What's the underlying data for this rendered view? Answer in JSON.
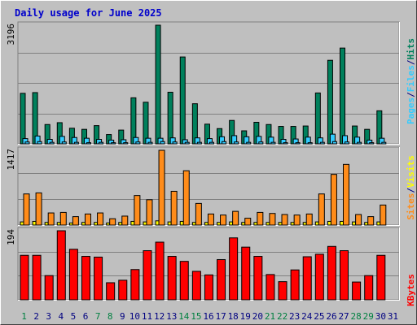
{
  "colors": {
    "background": "#c0c0c0",
    "plot_bg": "#bfbfbf",
    "grid": "#808080",
    "title_blue": "#0000cc",
    "hits": "#00805c",
    "files": "#33ccff",
    "pages": "#33ccff",
    "visits": "#ffff00",
    "sites": "#ff8c1a",
    "kbytes": "#ff0000",
    "day_black": "#000080",
    "day_green": "#008040"
  },
  "chart_data": [
    {
      "type": "bar",
      "title": "Daily usage for June 2025",
      "ylabel_max": "3196",
      "legend": [
        "Pages",
        "/",
        "Files",
        "/",
        "Hits"
      ],
      "categories": [
        "1",
        "2",
        "3",
        "4",
        "5",
        "6",
        "7",
        "8",
        "9",
        "10",
        "11",
        "12",
        "13",
        "14",
        "15",
        "16",
        "17",
        "18",
        "19",
        "20",
        "21",
        "22",
        "23",
        "24",
        "25",
        "26",
        "27",
        "28",
        "29",
        "30",
        "31"
      ],
      "ylim": [
        0,
        3196
      ],
      "series": [
        {
          "name": "Hits",
          "values": [
            1360,
            1380,
            520,
            570,
            420,
            390,
            490,
            250,
            370,
            1240,
            1120,
            3196,
            1390,
            2340,
            1080,
            530,
            410,
            630,
            350,
            580,
            520,
            470,
            470,
            480,
            1370,
            2250,
            2580,
            480,
            390,
            890,
            0
          ]
        },
        {
          "name": "Files",
          "values": [
            140,
            210,
            120,
            200,
            170,
            150,
            120,
            100,
            110,
            170,
            150,
            150,
            160,
            110,
            160,
            140,
            190,
            220,
            190,
            200,
            180,
            120,
            130,
            180,
            160,
            260,
            220,
            180,
            100,
            150,
            0
          ]
        },
        {
          "name": "Pages",
          "values": [
            50,
            60,
            40,
            50,
            40,
            30,
            40,
            30,
            30,
            50,
            40,
            60,
            50,
            40,
            40,
            40,
            60,
            50,
            40,
            50,
            40,
            30,
            30,
            30,
            40,
            60,
            50,
            40,
            30,
            40,
            0
          ]
        }
      ]
    },
    {
      "type": "bar",
      "ylabel_max": "1417",
      "legend": [
        "Sites",
        "/",
        "Visits"
      ],
      "categories": [
        "1",
        "2",
        "3",
        "4",
        "5",
        "6",
        "7",
        "8",
        "9",
        "10",
        "11",
        "12",
        "13",
        "14",
        "15",
        "16",
        "17",
        "18",
        "19",
        "20",
        "21",
        "22",
        "23",
        "24",
        "25",
        "26",
        "27",
        "28",
        "29",
        "30",
        "31"
      ],
      "ylim": [
        0,
        1417
      ],
      "series": [
        {
          "name": "Visits",
          "values": [
            60,
            70,
            50,
            50,
            40,
            50,
            50,
            40,
            50,
            70,
            60,
            80,
            60,
            70,
            50,
            50,
            50,
            60,
            50,
            50,
            50,
            50,
            50,
            50,
            60,
            70,
            70,
            60,
            50,
            60,
            0
          ]
        },
        {
          "name": "Sites",
          "values": [
            590,
            610,
            230,
            240,
            160,
            210,
            230,
            120,
            170,
            560,
            480,
            1417,
            640,
            1030,
            410,
            210,
            190,
            260,
            130,
            240,
            220,
            200,
            190,
            210,
            590,
            960,
            1150,
            200,
            160,
            380,
            0
          ]
        }
      ]
    },
    {
      "type": "bar",
      "ylabel_max": "194",
      "legend": [
        "KBytes"
      ],
      "categories": [
        "1",
        "2",
        "3",
        "4",
        "5",
        "6",
        "7",
        "8",
        "9",
        "10",
        "11",
        "12",
        "13",
        "14",
        "15",
        "16",
        "17",
        "18",
        "19",
        "20",
        "21",
        "22",
        "23",
        "24",
        "25",
        "26",
        "27",
        "28",
        "29",
        "30",
        "31"
      ],
      "ylim": [
        0,
        194
      ],
      "series": [
        {
          "name": "KBytes",
          "values": [
            125,
            125,
            68,
            194,
            142,
            122,
            120,
            48,
            55,
            85,
            138,
            162,
            122,
            108,
            80,
            70,
            113,
            174,
            148,
            122,
            71,
            51,
            84,
            121,
            128,
            150,
            138,
            50,
            68,
            125,
            0
          ]
        }
      ]
    }
  ],
  "x_axis": {
    "labels": [
      "1",
      "2",
      "3",
      "4",
      "5",
      "6",
      "7",
      "8",
      "9",
      "10",
      "11",
      "12",
      "13",
      "14",
      "15",
      "16",
      "17",
      "18",
      "19",
      "20",
      "21",
      "22",
      "23",
      "24",
      "25",
      "26",
      "27",
      "28",
      "29",
      "30",
      "31"
    ],
    "weekend": [
      1,
      7,
      8,
      14,
      15,
      21,
      22,
      28,
      29
    ]
  }
}
